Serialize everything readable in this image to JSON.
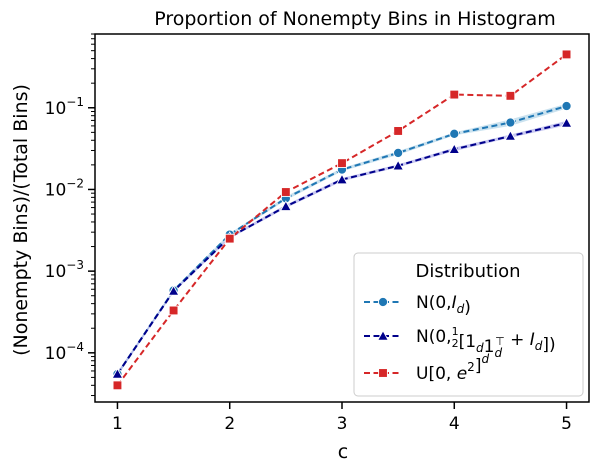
{
  "chart_data": {
    "type": "line",
    "title": "Proportion of Nonempty Bins in Histogram",
    "xlabel": "c",
    "ylabel": "(Nonempty Bins)/(Total Bins)",
    "yscale": "log",
    "xlim": [
      0.8,
      5.2
    ],
    "ylim": [
      2.5e-05,
      0.8
    ],
    "x": [
      1,
      1.5,
      2,
      2.5,
      3,
      3.5,
      4,
      4.5,
      5
    ],
    "xticks": [
      1,
      2,
      3,
      4,
      5
    ],
    "xtick_labels": [
      "1",
      "2",
      "3",
      "4",
      "5"
    ],
    "yticks": [
      0.0001,
      0.001,
      0.01,
      0.1
    ],
    "ytick_labels": [
      "10^-4",
      "10^-3",
      "10^-2",
      "10^-1"
    ],
    "legend": {
      "title": "Distribution",
      "location": "lower right"
    },
    "series": [
      {
        "name": "N(0,I_d)",
        "color": "#1f77b4",
        "band_color": "#9ecae1",
        "marker": "circle",
        "values": [
          5.5e-05,
          0.00058,
          0.0028,
          0.0078,
          0.0175,
          0.028,
          0.048,
          0.066,
          0.105
        ],
        "lower": [
          5.2e-05,
          0.00056,
          0.0027,
          0.0074,
          0.0167,
          0.0265,
          0.046,
          0.06,
          0.098
        ],
        "upper": [
          5.8e-05,
          0.0006,
          0.0029,
          0.0082,
          0.0183,
          0.0295,
          0.05,
          0.072,
          0.112
        ]
      },
      {
        "name": "N(0,1/2[1_d1_d^T+I_d])",
        "color": "#00008b",
        "band_color": "#9a9ae6",
        "marker": "triangle",
        "values": [
          5.5e-05,
          0.00057,
          0.0026,
          0.0062,
          0.0132,
          0.0195,
          0.031,
          0.045,
          0.065
        ],
        "lower": [
          5.2e-05,
          0.00055,
          0.0025,
          0.0059,
          0.0126,
          0.0187,
          0.0295,
          0.043,
          0.061
        ],
        "upper": [
          5.8e-05,
          0.00059,
          0.0027,
          0.0065,
          0.0138,
          0.0203,
          0.0325,
          0.047,
          0.069
        ]
      },
      {
        "name": "U[0,e^2]^d",
        "color": "#d62728",
        "marker": "square",
        "values": [
          4e-05,
          0.00033,
          0.0025,
          0.0093,
          0.021,
          0.052,
          0.145,
          0.14,
          0.45
        ]
      }
    ]
  }
}
